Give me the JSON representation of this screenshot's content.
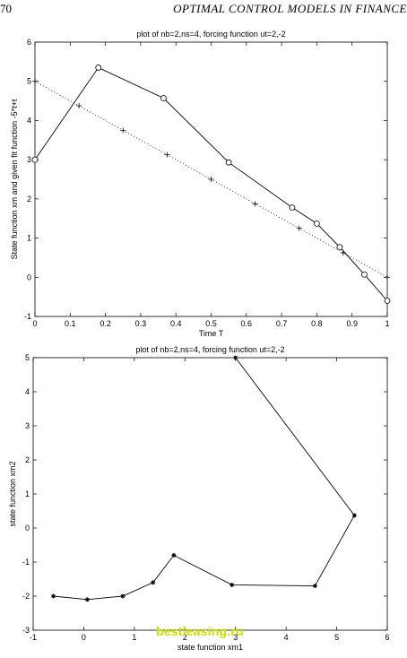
{
  "page": {
    "number": "70",
    "running_head": "OPTIMAL CONTROL MODELS IN FINANCE"
  },
  "watermark": "bestleasing.ru",
  "chart_data": [
    {
      "type": "line",
      "title": "plot of nb=2,ns=4, forcing function ut=2,-2",
      "xlabel": "Time T",
      "ylabel": "State function xm and given fit function -5*t+t",
      "xlim": [
        0,
        1
      ],
      "ylim": [
        -1,
        6
      ],
      "xticks": [
        0,
        0.1,
        0.2,
        0.3,
        0.4,
        0.5,
        0.6,
        0.7,
        0.8,
        0.9,
        1
      ],
      "yticks": [
        -1,
        0,
        1,
        2,
        3,
        4,
        5,
        6
      ],
      "grid": false,
      "series": [
        {
          "marker": "circle",
          "line": "solid",
          "x": [
            0,
            0.18,
            0.365,
            0.55,
            0.73,
            0.8,
            0.865,
            0.935,
            1.0
          ],
          "y": [
            3.0,
            5.35,
            4.57,
            2.93,
            1.78,
            1.37,
            0.77,
            0.07,
            -0.6
          ]
        },
        {
          "marker": "plus",
          "line": "dotted",
          "x": [
            0,
            0.125,
            0.25,
            0.375,
            0.5,
            0.625,
            0.75,
            0.875,
            1.0
          ],
          "y": [
            5.0,
            4.375,
            3.75,
            3.125,
            2.5,
            1.875,
            1.25,
            0.625,
            0.0
          ]
        }
      ]
    },
    {
      "type": "line",
      "title": "plot of nb=2,ns=4, forcing function ut=2,-2",
      "xlabel": "state function xm1",
      "ylabel": "state function xm2",
      "xlim": [
        -1,
        6
      ],
      "ylim": [
        -3,
        5
      ],
      "xticks": [
        -1,
        0,
        1,
        2,
        3,
        4,
        5,
        6
      ],
      "yticks": [
        -3,
        -2,
        -1,
        0,
        1,
        2,
        3,
        4,
        5
      ],
      "grid": false,
      "series": [
        {
          "marker": "star",
          "line": "solid",
          "x": [
            3.0,
            5.35,
            4.57,
            2.93,
            1.78,
            1.37,
            0.77,
            0.07,
            -0.6
          ],
          "y": [
            5.0,
            0.37,
            -1.7,
            -1.67,
            -0.8,
            -1.6,
            -2.0,
            -2.1,
            -2.0
          ]
        }
      ]
    }
  ]
}
